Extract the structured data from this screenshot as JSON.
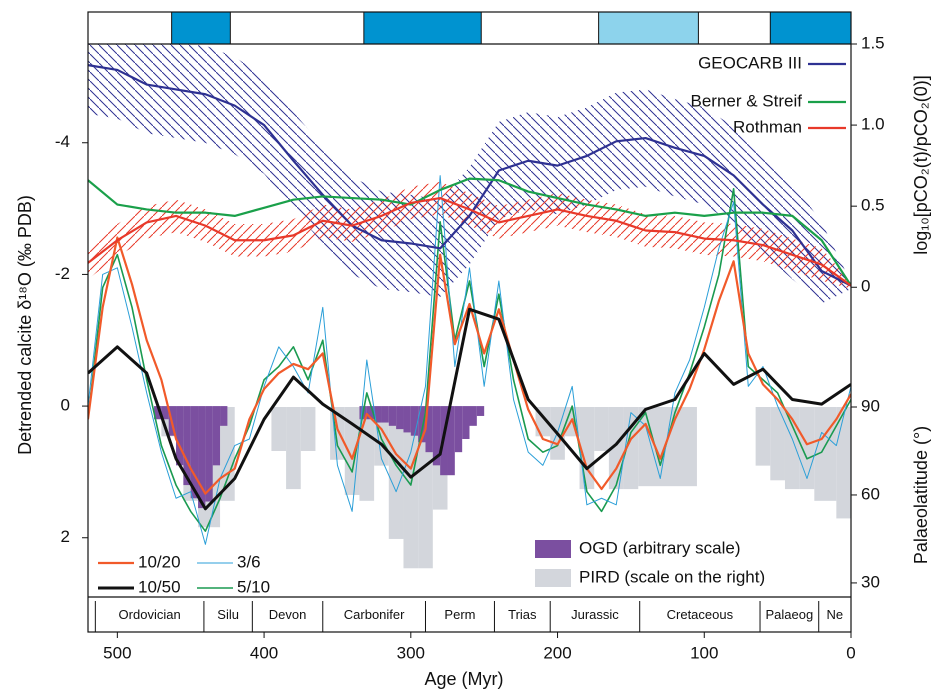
{
  "chart_data": {
    "type": "line",
    "xlabel": "Age (Myr)",
    "ylabel": "Detrended calcite  δ¹⁸O (‰ PDB)",
    "y2label": "log₁₀[pCO₂(t)/pCO₂(0)]",
    "y3label": "Palaeolatitude (°)",
    "xlim": [
      520,
      0
    ],
    "xticks": [
      500,
      400,
      300,
      200,
      100,
      0
    ],
    "ylim": [
      2.9,
      -5.5
    ],
    "yticks": [
      -4,
      -2,
      0,
      2
    ],
    "y2lim": [
      -1.91,
      1.5
    ],
    "y2ticks": [
      0,
      0.5,
      {
        "value": 1,
        "label": "1.0"
      },
      1.5
    ],
    "y3lim": [
      25.2,
      213.8
    ],
    "y3ticks": [
      30,
      60,
      90
    ],
    "series": [
      {
        "name": "GEOCARB III",
        "color": "#2e3192",
        "axis": "y2",
        "x": [
          520,
          500,
          480,
          460,
          440,
          420,
          400,
          380,
          360,
          340,
          320,
          300,
          280,
          260,
          240,
          220,
          200,
          180,
          160,
          140,
          120,
          100,
          80,
          60,
          40,
          20,
          0
        ],
        "values": [
          1.37,
          1.34,
          1.25,
          1.22,
          1.19,
          1.12,
          1.0,
          0.78,
          0.57,
          0.38,
          0.29,
          0.27,
          0.24,
          0.44,
          0.72,
          0.78,
          0.75,
          0.81,
          0.9,
          0.92,
          0.86,
          0.81,
          0.69,
          0.51,
          0.35,
          0.1,
          0.01
        ],
        "range_high": [
          1.5,
          1.5,
          1.5,
          1.5,
          1.49,
          1.42,
          1.3,
          1.08,
          0.87,
          0.68,
          0.59,
          0.57,
          0.54,
          0.74,
          1.02,
          1.08,
          1.05,
          1.11,
          1.2,
          1.22,
          1.16,
          1.11,
          0.99,
          0.81,
          0.65,
          0.4,
          0.03
        ],
        "range_low": [
          1.07,
          1.04,
          0.95,
          0.92,
          0.89,
          0.82,
          0.7,
          0.48,
          0.27,
          0.08,
          -0.01,
          -0.03,
          -0.06,
          0.14,
          0.42,
          0.48,
          0.45,
          0.51,
          0.6,
          0.62,
          0.56,
          0.51,
          0.39,
          0.21,
          0.05,
          -0.1,
          -0.01
        ]
      },
      {
        "name": "Berner & Streif",
        "color": "#1aa04a",
        "axis": "y2",
        "x": [
          520,
          500,
          480,
          460,
          440,
          420,
          400,
          380,
          360,
          340,
          320,
          300,
          280,
          260,
          240,
          220,
          200,
          180,
          160,
          140,
          120,
          100,
          80,
          60,
          40,
          20,
          0
        ],
        "values": [
          0.66,
          0.51,
          0.48,
          0.46,
          0.46,
          0.44,
          0.49,
          0.54,
          0.56,
          0.55,
          0.54,
          0.51,
          0.6,
          0.67,
          0.66,
          0.59,
          0.55,
          0.51,
          0.48,
          0.44,
          0.46,
          0.44,
          0.46,
          0.46,
          0.44,
          0.29,
          0.01
        ]
      },
      {
        "name": "Rothman",
        "color": "#e8392a",
        "axis": "y2",
        "x": [
          520,
          500,
          480,
          460,
          440,
          420,
          400,
          380,
          360,
          340,
          320,
          300,
          280,
          260,
          240,
          220,
          200,
          180,
          160,
          140,
          120,
          100,
          80,
          60,
          40,
          20,
          0
        ],
        "values": [
          0.15,
          0.29,
          0.4,
          0.44,
          0.38,
          0.29,
          0.29,
          0.32,
          0.41,
          0.38,
          0.44,
          0.52,
          0.55,
          0.48,
          0.4,
          0.44,
          0.48,
          0.44,
          0.41,
          0.35,
          0.34,
          0.3,
          0.29,
          0.26,
          0.2,
          0.14,
          0.01
        ],
        "range_high": [
          0.25,
          0.39,
          0.5,
          0.54,
          0.48,
          0.39,
          0.39,
          0.42,
          0.51,
          0.48,
          0.54,
          0.62,
          0.65,
          0.58,
          0.5,
          0.54,
          0.58,
          0.54,
          0.51,
          0.45,
          0.44,
          0.4,
          0.39,
          0.36,
          0.3,
          0.24,
          0.03
        ],
        "range_low": [
          0.05,
          0.19,
          0.3,
          0.34,
          0.28,
          0.19,
          0.19,
          0.22,
          0.31,
          0.28,
          0.34,
          0.42,
          0.45,
          0.38,
          0.3,
          0.34,
          0.38,
          0.34,
          0.31,
          0.25,
          0.24,
          0.2,
          0.19,
          0.16,
          0.1,
          0.04,
          -0.01
        ]
      },
      {
        "name": "10/20",
        "color": "#f15a2a",
        "x": [
          520,
          510,
          500,
          490,
          480,
          470,
          460,
          450,
          440,
          430,
          420,
          410,
          400,
          390,
          380,
          370,
          360,
          350,
          340,
          330,
          320,
          310,
          300,
          290,
          280,
          270,
          260,
          250,
          240,
          230,
          220,
          210,
          200,
          190,
          180,
          170,
          160,
          150,
          140,
          130,
          120,
          110,
          100,
          90,
          80,
          70,
          60,
          50,
          40,
          30,
          20,
          10,
          0
        ],
        "values": [
          0.2,
          -1.5,
          -2.56,
          -1.85,
          -1.0,
          -0.4,
          0.5,
          0.95,
          1.33,
          1.1,
          0.95,
          0.2,
          -0.26,
          -0.5,
          -0.64,
          -0.56,
          -0.8,
          0.35,
          0.8,
          0.12,
          0.35,
          0.73,
          0.95,
          0.35,
          -2.3,
          -0.94,
          -1.55,
          -0.8,
          -1.47,
          -0.7,
          0.05,
          0.5,
          0.58,
          0.2,
          0.95,
          1.26,
          0.95,
          0.5,
          0.27,
          0.8,
          0.2,
          -0.26,
          -0.86,
          -1.6,
          -2.2,
          -0.8,
          -0.33,
          -0.1,
          0.2,
          0.58,
          0.5,
          0.2,
          -0.18
        ]
      },
      {
        "name": "3/6",
        "color": "#2b9fd8",
        "x": [
          520,
          510,
          500,
          490,
          480,
          470,
          460,
          450,
          440,
          430,
          420,
          410,
          400,
          390,
          380,
          370,
          360,
          350,
          340,
          330,
          320,
          310,
          300,
          290,
          280,
          270,
          260,
          250,
          240,
          230,
          220,
          210,
          200,
          190,
          180,
          170,
          160,
          150,
          140,
          130,
          120,
          110,
          100,
          90,
          80,
          70,
          60,
          50,
          40,
          30,
          20,
          10,
          0
        ],
        "values": [
          0.0,
          -2.0,
          -2.1,
          -1.2,
          -0.2,
          0.7,
          1.4,
          1.3,
          2.1,
          1.1,
          0.6,
          0.5,
          -0.3,
          -0.9,
          -0.6,
          -0.2,
          -1.5,
          0.9,
          1.6,
          -0.7,
          0.8,
          1.3,
          0.7,
          -0.3,
          -3.5,
          -0.6,
          -2.1,
          -0.3,
          -1.9,
          -0.1,
          0.7,
          0.9,
          0.4,
          -0.3,
          1.5,
          1.4,
          1.5,
          0.1,
          0.3,
          1.1,
          -0.2,
          -0.7,
          -1.5,
          -2.4,
          -3.1,
          -0.3,
          -0.6,
          0.0,
          0.5,
          1.1,
          0.4,
          0.6,
          -0.3
        ]
      },
      {
        "name": "10/50",
        "color": "#111111",
        "x": [
          520,
          500,
          480,
          460,
          440,
          420,
          400,
          380,
          360,
          340,
          320,
          300,
          280,
          260,
          240,
          220,
          200,
          180,
          160,
          140,
          120,
          100,
          80,
          60,
          40,
          20,
          0
        ],
        "values": [
          -0.5,
          -0.9,
          -0.5,
          0.8,
          1.56,
          1.1,
          0.2,
          -0.44,
          -0.03,
          0.27,
          0.58,
          1.08,
          0.73,
          -1.47,
          -1.32,
          -0.1,
          0.42,
          0.95,
          0.58,
          0.05,
          -0.1,
          -0.8,
          -0.33,
          -0.56,
          -0.1,
          -0.03,
          -0.33
        ]
      },
      {
        "name": "5/10",
        "color": "#1a9a50",
        "x": [
          520,
          510,
          500,
          490,
          480,
          470,
          460,
          450,
          440,
          430,
          420,
          410,
          400,
          390,
          380,
          370,
          360,
          350,
          340,
          330,
          320,
          310,
          300,
          290,
          280,
          270,
          260,
          250,
          240,
          230,
          220,
          210,
          200,
          190,
          180,
          170,
          160,
          150,
          140,
          130,
          120,
          110,
          100,
          90,
          80,
          70,
          60,
          50,
          40,
          30,
          20,
          10,
          0
        ],
        "values": [
          0.2,
          -1.8,
          -2.3,
          -1.5,
          -0.4,
          0.6,
          1.2,
          1.6,
          1.9,
          1.4,
          0.8,
          0.3,
          -0.4,
          -0.6,
          -0.9,
          -0.4,
          -1.0,
          0.6,
          1.0,
          -0.2,
          0.5,
          0.9,
          1.2,
          0.1,
          -2.8,
          -1.0,
          -1.9,
          -0.6,
          -1.7,
          -0.4,
          0.5,
          0.7,
          0.6,
          0.0,
          1.3,
          1.6,
          1.2,
          0.4,
          0.1,
          0.9,
          0.1,
          -0.5,
          -1.2,
          -2.0,
          -3.3,
          -0.6,
          -0.4,
          -0.2,
          0.3,
          0.8,
          0.7,
          0.3,
          -0.1
        ]
      }
    ],
    "ogd": {
      "name": "OGD (arbitrary scale)",
      "color": "#7b4fa0",
      "bins": [
        475,
        470,
        465,
        460,
        455,
        450,
        445,
        440,
        435,
        430,
        425,
        420,
        415,
        410,
        405,
        400,
        395,
        390,
        385,
        380,
        375,
        370,
        365,
        360,
        355,
        350,
        345,
        340,
        335,
        330,
        325,
        320,
        315,
        310,
        305,
        300,
        295,
        290,
        285,
        280,
        275,
        270,
        265,
        260,
        255,
        250
      ],
      "values": [
        0.2,
        0.2,
        0.45,
        0.9,
        1.2,
        1.4,
        1.55,
        1.45,
        0.9,
        0.3,
        0,
        0,
        0,
        0,
        0,
        0,
        0,
        0,
        0,
        0,
        0,
        0,
        0,
        0,
        0,
        0,
        0,
        0,
        0.2,
        0.2,
        0.25,
        0.25,
        0.3,
        0.35,
        0.4,
        0.45,
        0.55,
        0.7,
        0.9,
        1.05,
        1.05,
        0.7,
        0.5,
        0.3,
        0.15
      ]
    },
    "pird": {
      "name": "PIRD (scale on the right)",
      "color": "#d3d6dc",
      "axis": "y3",
      "bins": [
        470,
        455,
        445,
        430,
        420,
        405,
        395,
        385,
        375,
        365,
        355,
        345,
        335,
        325,
        315,
        305,
        295,
        285,
        275,
        255,
        215,
        205,
        195,
        185,
        175,
        165,
        155,
        145,
        105,
        95,
        65,
        55,
        45,
        35,
        25,
        10,
        0
      ],
      "values": [
        80,
        58,
        49,
        58,
        90,
        90,
        75,
        62,
        75,
        90,
        72,
        60,
        58,
        70,
        45,
        35,
        35,
        55,
        90,
        90,
        80,
        72,
        80,
        62,
        75,
        62,
        62,
        63,
        90,
        90,
        70,
        65,
        62,
        62,
        58,
        52
      ]
    },
    "climate_intervals": [
      {
        "from": 463,
        "to": 423,
        "color": "#0093d0"
      },
      {
        "from": 332,
        "to": 252,
        "color": "#0093d0"
      },
      {
        "from": 172,
        "to": 104,
        "color": "#8dd3ec"
      },
      {
        "from": 55,
        "to": 0,
        "color": "#0093d0"
      }
    ],
    "periods": {
      "names": [
        "Ordovician",
        "Silu",
        "Devon",
        "Carbonifer",
        "Perm",
        "Trias",
        "Jurassic",
        "Cretaceous",
        "Palaeog",
        "Ne"
      ],
      "boundaries": [
        515,
        441,
        408,
        360,
        290,
        243,
        205,
        144,
        62,
        22,
        0
      ]
    }
  }
}
